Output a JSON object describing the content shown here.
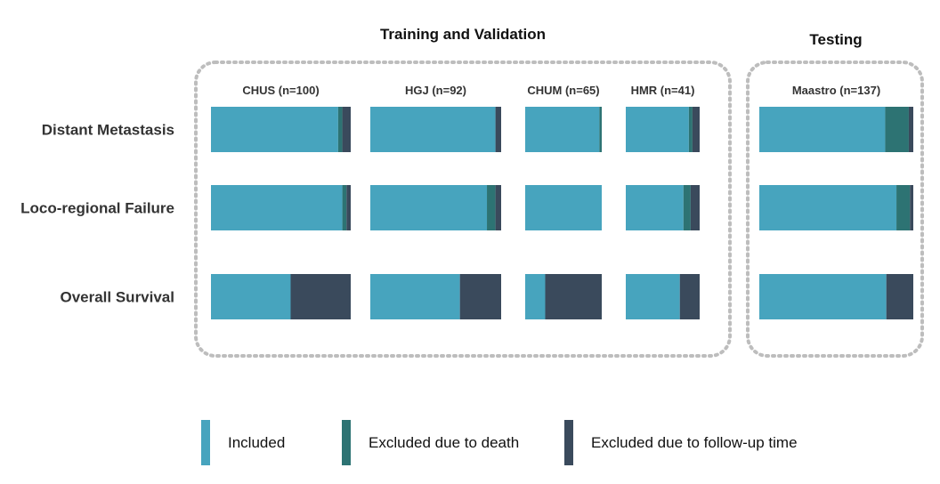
{
  "chart_data": {
    "type": "bar",
    "orientation": "horizontal",
    "stacked": true,
    "normalized": true,
    "groups": [
      {
        "title": "Training and Validation",
        "cohorts": [
          "CHUS (n=100)",
          "HGJ (n=92)",
          "CHUM (n=65)",
          "HMR (n=41)"
        ]
      },
      {
        "title": "Testing",
        "cohorts": [
          "Maastro (n=137)"
        ]
      }
    ],
    "cohorts": [
      {
        "label": "CHUS (n=100)",
        "n": 100
      },
      {
        "label": "HGJ (n=92)",
        "n": 92
      },
      {
        "label": "CHUM (n=65)",
        "n": 65
      },
      {
        "label": "HMR (n=41)",
        "n": 41
      },
      {
        "label": "Maastro (n=137)",
        "n": 137
      }
    ],
    "outcomes": [
      "Distant Metastasis",
      "Loco-regional Failure",
      "Overall Survival"
    ],
    "series": [
      {
        "name": "Included",
        "color": "#47A4BE",
        "values": [
          [
            91,
            88,
            63,
            35,
            112
          ],
          [
            94,
            82,
            65,
            32,
            122
          ],
          [
            57,
            63,
            17,
            30,
            113
          ]
        ]
      },
      {
        "name": "Excluded due to death",
        "color": "#2D7373",
        "values": [
          [
            3,
            0,
            2,
            2,
            21
          ],
          [
            3,
            6,
            0,
            4,
            12
          ],
          [
            0,
            0,
            0,
            0,
            0
          ]
        ]
      },
      {
        "name": "Excluded due to follow-up time",
        "color": "#3A4A5C",
        "values": [
          [
            6,
            4,
            0,
            4,
            4
          ],
          [
            3,
            4,
            0,
            5,
            3
          ],
          [
            43,
            29,
            48,
            11,
            24
          ]
        ]
      }
    ],
    "legend_position": "bottom",
    "grid": false
  }
}
